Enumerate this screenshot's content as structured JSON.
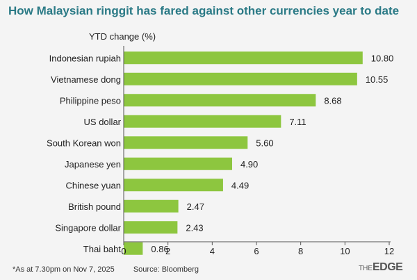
{
  "title": "How Malaysian ringgit has fared against other currencies year to date",
  "chart_data": {
    "type": "bar",
    "orientation": "horizontal",
    "title": "How Malaysian ringgit has fared against other currencies year to date",
    "ylabel": "YTD change (%)",
    "xlabel": "",
    "categories": [
      "Indonesian rupiah",
      "Vietnamese dong",
      "Philippine peso",
      "US dollar",
      "South Korean won",
      "Japanese yen",
      "Chinese yuan",
      "British pound",
      "Singapore dollar",
      "Thai baht"
    ],
    "values": [
      10.8,
      10.55,
      8.68,
      7.11,
      5.6,
      4.9,
      4.49,
      2.47,
      2.43,
      0.86
    ],
    "value_labels": [
      "10.80",
      "10.55",
      "8.68",
      "7.11",
      "5.60",
      "4.90",
      "4.49",
      "2.47",
      "2.43",
      "0.86"
    ],
    "xlim": [
      0,
      12
    ],
    "xticks": [
      0,
      2,
      4,
      6,
      8,
      10,
      12
    ],
    "grid": false,
    "bar_color": "#8dc63f"
  },
  "footer": {
    "note": "*As at 7.30pm on Nov 7, 2025",
    "source": "Source: Bloomberg"
  },
  "logo": {
    "part1": "THE",
    "part2": "EDGE"
  }
}
